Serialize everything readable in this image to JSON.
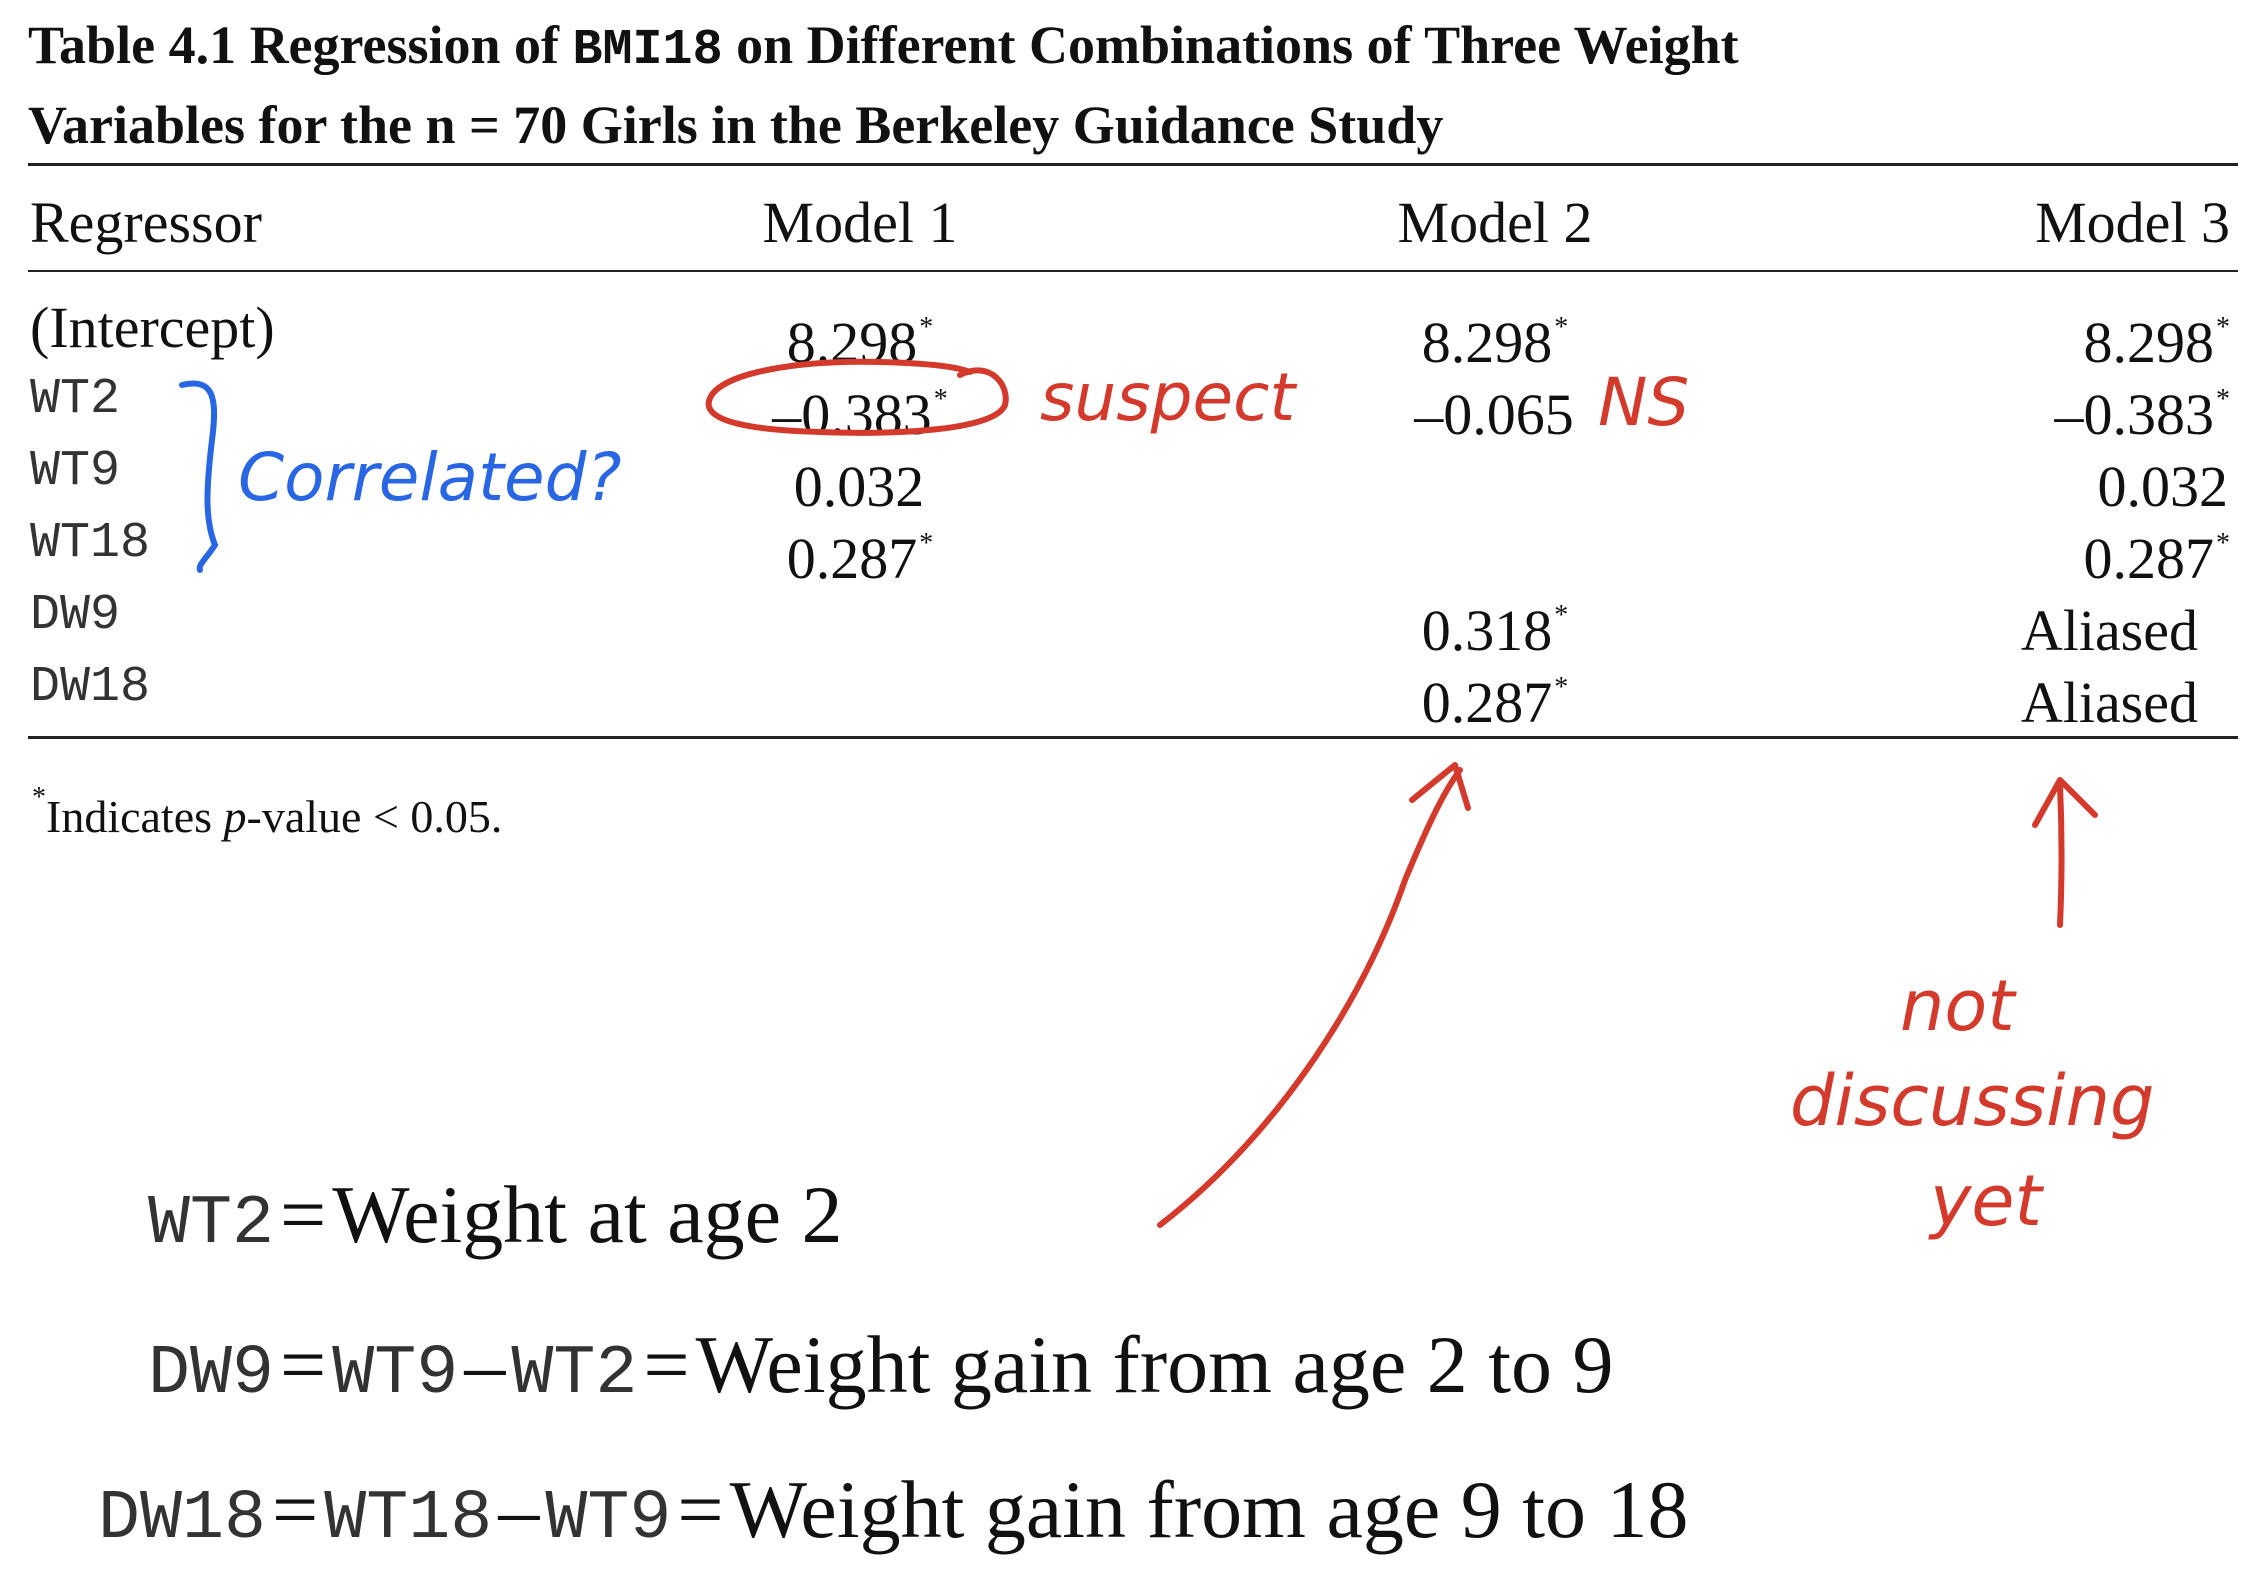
{
  "caption": {
    "line1_prefix": "Table 4.1  Regression of ",
    "line1_var": "BMI18",
    "line1_suffix": " on Different Combinations of Three Weight",
    "line2": "Variables for the n = 70 Girls in the Berkeley Guidance Study"
  },
  "table": {
    "headers": [
      "Regressor",
      "Model 1",
      "Model 2",
      "Model 3"
    ],
    "rows": [
      {
        "name": "(Intercept)",
        "m1": "8.298",
        "m1_star": "*",
        "m2": "8.298",
        "m2_star": "*",
        "m3": "8.298",
        "m3_star": "*"
      },
      {
        "name": "WT2",
        "m1": "–0.383",
        "m1_star": "*",
        "m2": "–0.065",
        "m2_star": "",
        "m3": "–0.383",
        "m3_star": "*"
      },
      {
        "name": "WT9",
        "m1": "0.032",
        "m1_star": "",
        "m2": "",
        "m2_star": "",
        "m3": "0.032",
        "m3_star": ""
      },
      {
        "name": "WT18",
        "m1": "0.287",
        "m1_star": "*",
        "m2": "",
        "m2_star": "",
        "m3": "0.287",
        "m3_star": "*"
      },
      {
        "name": "DW9",
        "m1": "",
        "m1_star": "",
        "m2": "0.318",
        "m2_star": "*",
        "m3": "Aliased",
        "m3_star": ""
      },
      {
        "name": "DW18",
        "m1": "",
        "m1_star": "",
        "m2": "0.287",
        "m2_star": "*",
        "m3": "Aliased",
        "m3_star": ""
      }
    ],
    "footnote_star": "*",
    "footnote_text_pre": "Indicates ",
    "footnote_p": "p",
    "footnote_text_post": "-value < 0.05."
  },
  "definitions": [
    {
      "code": "WT2",
      "eq": "=",
      "text": "Weight at age 2"
    },
    {
      "code": "DW9",
      "eq": "=",
      "code2": "WT9",
      "minus": "–",
      "code3": "WT2",
      "eq2": "=",
      "text": "Weight gain from age 2 to 9"
    },
    {
      "code": "DW18",
      "eq": "=",
      "code2": "WT18",
      "minus": "–",
      "code3": "WT9",
      "eq2": "=",
      "text": "Weight gain from age 9 to 18"
    }
  ],
  "annotations": {
    "suspect": "suspect",
    "ns": "NS",
    "correlated": "Correlated?",
    "not": "not",
    "discussing": "discussing",
    "yet": "yet",
    "red": "#d33a2c",
    "blue": "#2966e3"
  }
}
